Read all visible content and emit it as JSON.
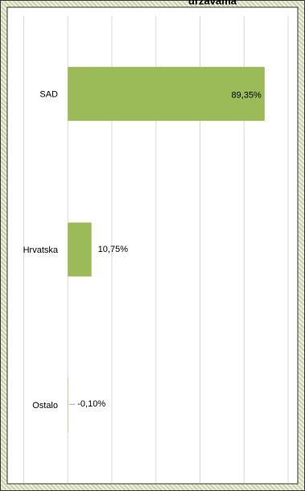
{
  "chart_data": {
    "type": "bar",
    "orientation": "horizontal",
    "title": "državama",
    "categories": [
      "SAD",
      "Hrvatska",
      "Ostalo"
    ],
    "values": [
      89.35,
      10.75,
      -0.1
    ],
    "value_labels": [
      "89,35%",
      "10,75%",
      "-0,10%"
    ],
    "color": "#9bbb59",
    "xlim": [
      -20,
      100
    ],
    "xticks": [
      -20,
      0,
      20,
      40,
      60,
      80,
      100
    ],
    "grid": true
  }
}
